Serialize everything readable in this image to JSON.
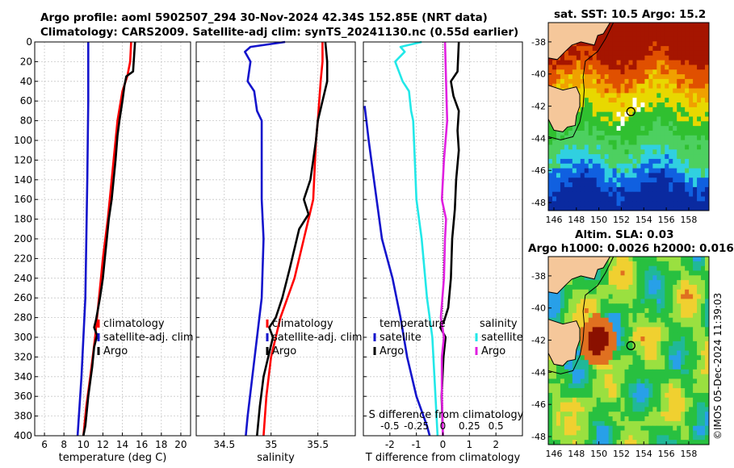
{
  "header": {
    "title_line1": "Argo profile: aoml 5902507_294 30-Nov-2024 42.34S 152.85E (NRT data)",
    "title_line2": "Climatology: CARS2009. Satellite-adj clim: synTS_20241130.nc (0.55d earlier)"
  },
  "sst_panel": {
    "title": "sat. SST: 10.5 Argo: 15.2",
    "yticks": [
      "-38",
      "-40",
      "-42",
      "-44",
      "-46",
      "-48"
    ],
    "xticks": [
      "146",
      "148",
      "150",
      "152",
      "154",
      "156",
      "158"
    ]
  },
  "sla_panel": {
    "title_line1": "Altim. SLA: 0.03",
    "title_line2": "Argo h1000: 0.0026 h2000: 0.016",
    "yticks": [
      "-38",
      "-40",
      "-42",
      "-44",
      "-46",
      "-48"
    ],
    "xticks": [
      "146",
      "148",
      "150",
      "152",
      "154",
      "156",
      "158"
    ]
  },
  "copyright": "©IMOS 05-Dec-2024 11:39:03",
  "colors": {
    "climatology": "#ff0000",
    "satellite": "#1414cc",
    "argo": "#000000",
    "temp_diff_satellite": "#1414cc",
    "sal_diff_satellite": "#22e8e8",
    "sal_diff_argo": "#e020e0",
    "land": "#f5c79a"
  },
  "chart_data": [
    {
      "type": "line",
      "id": "temperature",
      "xlabel": "temperature (deg C)",
      "ylabel": "depth",
      "xlim": [
        5,
        21
      ],
      "ylim": [
        0,
        400
      ],
      "xticks": [
        6,
        8,
        10,
        12,
        14,
        16,
        18,
        20
      ],
      "yticks": [
        0,
        20,
        40,
        60,
        80,
        100,
        120,
        140,
        160,
        180,
        200,
        220,
        240,
        260,
        280,
        300,
        320,
        340,
        360,
        380,
        400
      ],
      "grid": true,
      "legend": [
        "climatology",
        "satellite-adj. clim",
        "Argo"
      ],
      "series": [
        {
          "name": "climatology",
          "color": "#ff0000",
          "points": [
            [
              14.9,
              0
            ],
            [
              14.8,
              20
            ],
            [
              14.5,
              35
            ],
            [
              14.0,
              50
            ],
            [
              13.5,
              80
            ],
            [
              13.3,
              100
            ],
            [
              12.9,
              140
            ],
            [
              12.5,
              180
            ],
            [
              12.0,
              220
            ],
            [
              11.6,
              260
            ],
            [
              11.2,
              300
            ],
            [
              10.7,
              340
            ],
            [
              10.3,
              370
            ],
            [
              10.0,
              400
            ]
          ]
        },
        {
          "name": "satellite-adj. clim",
          "color": "#1414cc",
          "points": [
            [
              10.5,
              0
            ],
            [
              10.5,
              60
            ],
            [
              10.4,
              140
            ],
            [
              10.3,
              200
            ],
            [
              10.2,
              260
            ],
            [
              10.0,
              300
            ],
            [
              9.8,
              340
            ],
            [
              9.6,
              370
            ],
            [
              9.4,
              400
            ]
          ]
        },
        {
          "name": "Argo",
          "color": "#000000",
          "points": [
            [
              15.3,
              0
            ],
            [
              15.2,
              15
            ],
            [
              15.1,
              30
            ],
            [
              14.4,
              35
            ],
            [
              14.2,
              45
            ],
            [
              14.0,
              60
            ],
            [
              13.7,
              80
            ],
            [
              13.5,
              95
            ],
            [
              13.3,
              120
            ],
            [
              13.1,
              140
            ],
            [
              12.9,
              160
            ],
            [
              12.6,
              180
            ],
            [
              12.4,
              200
            ],
            [
              12.2,
              220
            ],
            [
              12.0,
              240
            ],
            [
              11.7,
              260
            ],
            [
              11.3,
              282
            ],
            [
              11.1,
              290
            ],
            [
              11.4,
              298
            ],
            [
              11.1,
              310
            ],
            [
              10.9,
              330
            ],
            [
              10.5,
              360
            ],
            [
              10.2,
              390
            ],
            [
              10.0,
              400
            ]
          ]
        }
      ]
    },
    {
      "type": "line",
      "id": "salinity",
      "xlabel": "salinity",
      "ylabel": "depth",
      "xlim": [
        34.2,
        35.9
      ],
      "ylim": [
        0,
        400
      ],
      "xticks": [
        34.5,
        35,
        35.5
      ],
      "yticks": [
        0,
        20,
        40,
        60,
        80,
        100,
        120,
        140,
        160,
        180,
        200,
        220,
        240,
        260,
        280,
        300,
        320,
        340,
        360,
        380,
        400
      ],
      "grid": true,
      "legend": [
        "climatology",
        "satellite-adj. clim",
        "Argo"
      ],
      "series": [
        {
          "name": "climatology",
          "color": "#ff0000",
          "points": [
            [
              35.55,
              0
            ],
            [
              35.55,
              20
            ],
            [
              35.53,
              40
            ],
            [
              35.5,
              80
            ],
            [
              35.48,
              100
            ],
            [
              35.45,
              160
            ],
            [
              35.35,
              200
            ],
            [
              35.25,
              240
            ],
            [
              35.1,
              280
            ],
            [
              35.0,
              320
            ],
            [
              34.95,
              360
            ],
            [
              34.92,
              400
            ]
          ]
        },
        {
          "name": "satellite-adj. clim",
          "color": "#1414cc",
          "points": [
            [
              35.15,
              0
            ],
            [
              34.78,
              5
            ],
            [
              34.72,
              10
            ],
            [
              34.78,
              20
            ],
            [
              34.75,
              40
            ],
            [
              34.82,
              50
            ],
            [
              34.85,
              70
            ],
            [
              34.9,
              80
            ],
            [
              34.9,
              160
            ],
            [
              34.92,
              200
            ],
            [
              34.9,
              260
            ],
            [
              34.85,
              300
            ],
            [
              34.8,
              340
            ],
            [
              34.75,
              380
            ],
            [
              34.73,
              400
            ]
          ]
        },
        {
          "name": "Argo",
          "color": "#000000",
          "points": [
            [
              35.58,
              0
            ],
            [
              35.6,
              20
            ],
            [
              35.6,
              40
            ],
            [
              35.55,
              60
            ],
            [
              35.5,
              80
            ],
            [
              35.48,
              100
            ],
            [
              35.45,
              120
            ],
            [
              35.42,
              140
            ],
            [
              35.35,
              160
            ],
            [
              35.4,
              175
            ],
            [
              35.3,
              190
            ],
            [
              35.25,
              210
            ],
            [
              35.2,
              230
            ],
            [
              35.12,
              260
            ],
            [
              35.05,
              280
            ],
            [
              34.98,
              290
            ],
            [
              35.02,
              300
            ],
            [
              34.97,
              320
            ],
            [
              34.92,
              340
            ],
            [
              34.88,
              370
            ],
            [
              34.85,
              400
            ]
          ]
        }
      ]
    },
    {
      "type": "line",
      "id": "differences",
      "xlabel": "T difference from climatology",
      "xlabel_top": "S difference from climatology",
      "ylabel": "depth",
      "xlim": [
        -3,
        3
      ],
      "ylim": [
        0,
        400
      ],
      "xticks": [
        -2,
        -1,
        0,
        1,
        2
      ],
      "xticks_top": [
        -0.5,
        -0.25,
        0,
        0.25,
        0.5
      ],
      "xticks_top_labels": [
        "-0.5",
        "-0.25",
        "0",
        "0.25",
        "0.5"
      ],
      "yticks": [
        0,
        20,
        40,
        60,
        80,
        100,
        120,
        140,
        160,
        180,
        200,
        220,
        240,
        260,
        280,
        300,
        320,
        340,
        360,
        380,
        400
      ],
      "grid": true,
      "legend_temperature_title": "temperature",
      "legend_salinity_title": "salinity",
      "legend_temperature": [
        "satellite",
        "Argo"
      ],
      "legend_salinity": [
        "satellite",
        "Argo"
      ],
      "series": [
        {
          "name": "temperature satellite",
          "color": "#1414cc",
          "axis": "T",
          "points": [
            [
              -2.95,
              65
            ],
            [
              -2.8,
              100
            ],
            [
              -2.6,
              140
            ],
            [
              -2.3,
              200
            ],
            [
              -1.9,
              240
            ],
            [
              -1.6,
              280
            ],
            [
              -1.35,
              320
            ],
            [
              -1.0,
              360
            ],
            [
              -0.6,
              390
            ],
            [
              -0.5,
              400
            ]
          ]
        },
        {
          "name": "temperature Argo",
          "color": "#000000",
          "axis": "T",
          "points": [
            [
              0.6,
              0
            ],
            [
              0.55,
              30
            ],
            [
              0.3,
              40
            ],
            [
              0.4,
              55
            ],
            [
              0.6,
              70
            ],
            [
              0.55,
              90
            ],
            [
              0.6,
              110
            ],
            [
              0.5,
              140
            ],
            [
              0.45,
              170
            ],
            [
              0.35,
              200
            ],
            [
              0.3,
              240
            ],
            [
              0.2,
              270
            ],
            [
              0.05,
              283
            ],
            [
              -0.1,
              290
            ],
            [
              0.1,
              300
            ],
            [
              0.02,
              320
            ],
            [
              -0.05,
              360
            ],
            [
              0,
              400
            ]
          ]
        },
        {
          "name": "salinity satellite",
          "color": "#22e8e8",
          "axis": "S",
          "points": [
            [
              -0.2,
              0
            ],
            [
              -0.4,
              5
            ],
            [
              -0.36,
              10
            ],
            [
              -0.45,
              20
            ],
            [
              -0.38,
              40
            ],
            [
              -0.32,
              50
            ],
            [
              -0.3,
              70
            ],
            [
              -0.28,
              80
            ],
            [
              -0.25,
              160
            ],
            [
              -0.2,
              200
            ],
            [
              -0.15,
              260
            ],
            [
              -0.1,
              300
            ],
            [
              -0.08,
              340
            ],
            [
              -0.06,
              380
            ],
            [
              -0.05,
              400
            ]
          ]
        },
        {
          "name": "salinity Argo",
          "color": "#e020e0",
          "axis": "S",
          "points": [
            [
              0.02,
              0
            ],
            [
              0.03,
              40
            ],
            [
              0.04,
              80
            ],
            [
              0.01,
              120
            ],
            [
              -0.01,
              160
            ],
            [
              0.03,
              180
            ],
            [
              0.02,
              200
            ],
            [
              0.01,
              240
            ],
            [
              -0.02,
              280
            ],
            [
              0.01,
              300
            ],
            [
              -0.01,
              320
            ],
            [
              -0.01,
              360
            ],
            [
              0.0,
              400
            ]
          ]
        }
      ]
    }
  ]
}
